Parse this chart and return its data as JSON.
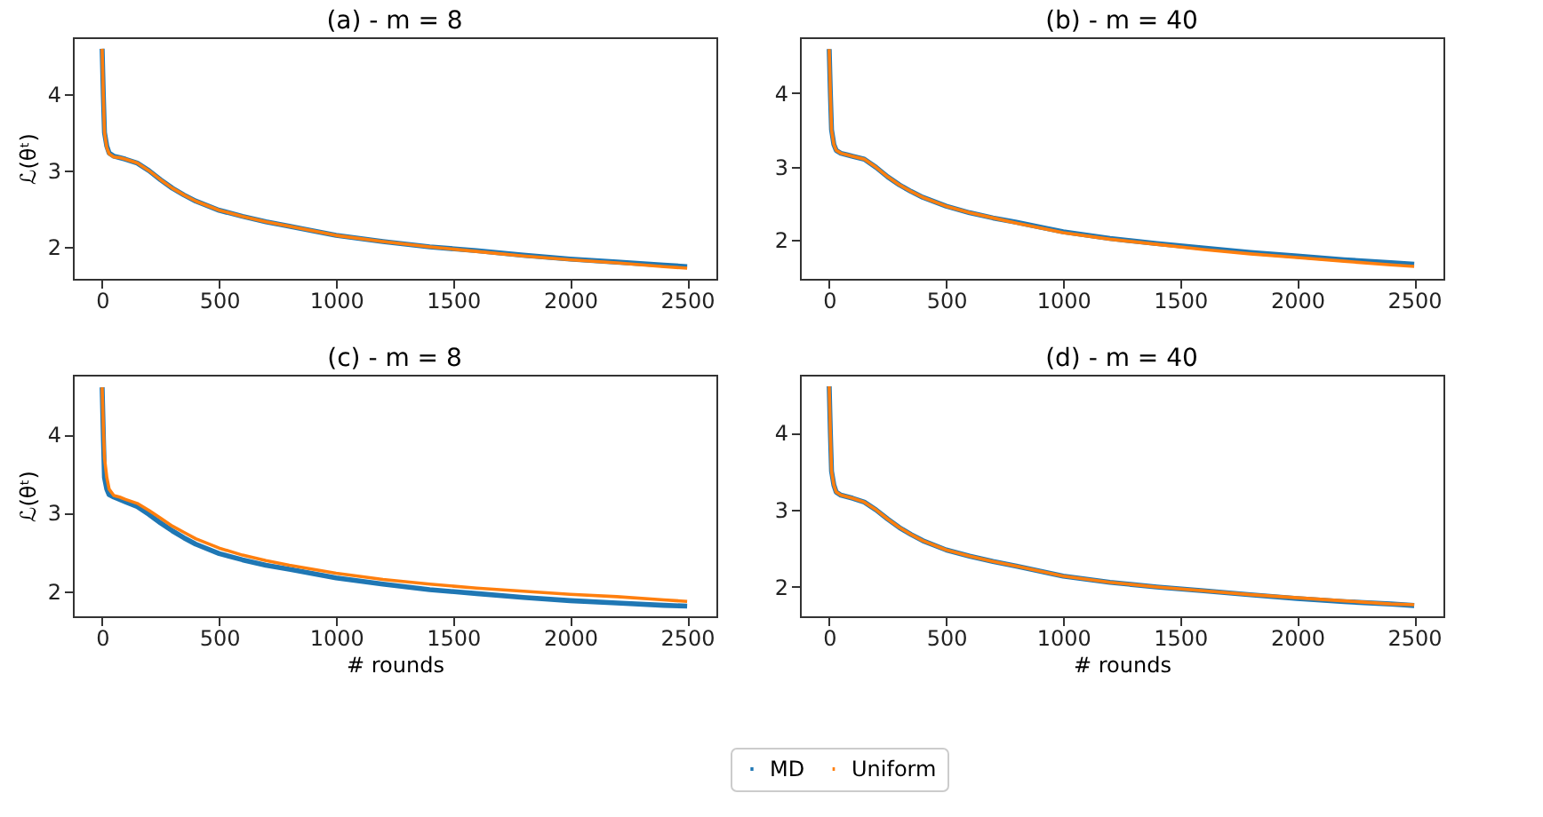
{
  "chart_data": [
    {
      "type": "line",
      "title": "(a) - m = 8",
      "legend": "bottom",
      "ylabel": "ℒ(θᵗ)",
      "x": [
        0,
        5,
        10,
        20,
        30,
        50,
        75,
        100,
        150,
        200,
        250,
        300,
        350,
        400,
        500,
        600,
        700,
        800,
        1000,
        1200,
        1400,
        1600,
        1800,
        2000,
        2200,
        2400,
        2500
      ],
      "series": [
        {
          "name": "MD",
          "color": "#1f77b4",
          "values": [
            4.6,
            4.0,
            3.5,
            3.32,
            3.23,
            3.19,
            3.17,
            3.15,
            3.1,
            3.0,
            2.88,
            2.77,
            2.68,
            2.6,
            2.48,
            2.4,
            2.33,
            2.27,
            2.15,
            2.07,
            2.0,
            1.95,
            1.89,
            1.84,
            1.8,
            1.76,
            1.74
          ]
        },
        {
          "name": "Uniform",
          "color": "#ff7f0e",
          "values": [
            4.6,
            4.0,
            3.5,
            3.3,
            3.22,
            3.18,
            3.17,
            3.15,
            3.1,
            3.0,
            2.88,
            2.77,
            2.68,
            2.6,
            2.48,
            2.4,
            2.33,
            2.27,
            2.15,
            2.07,
            2.0,
            1.94,
            1.88,
            1.83,
            1.79,
            1.74,
            1.72
          ]
        }
      ],
      "xlim": [
        -125,
        2625
      ],
      "ylim": [
        1.58,
        4.75
      ],
      "xticks": [
        0,
        500,
        1000,
        1500,
        2000,
        2500
      ],
      "yticks": [
        2,
        3,
        4
      ]
    },
    {
      "type": "line",
      "title": "(b) - m = 40",
      "legend": "bottom",
      "x": [
        0,
        5,
        10,
        20,
        30,
        50,
        75,
        100,
        150,
        200,
        250,
        300,
        350,
        400,
        500,
        600,
        700,
        800,
        1000,
        1200,
        1400,
        1600,
        1800,
        2000,
        2200,
        2400,
        2500
      ],
      "series": [
        {
          "name": "MD",
          "color": "#1f77b4",
          "values": [
            4.6,
            4.0,
            3.5,
            3.3,
            3.22,
            3.18,
            3.16,
            3.14,
            3.1,
            2.99,
            2.86,
            2.75,
            2.66,
            2.58,
            2.46,
            2.37,
            2.3,
            2.24,
            2.11,
            2.02,
            1.95,
            1.89,
            1.83,
            1.78,
            1.73,
            1.69,
            1.67
          ]
        },
        {
          "name": "Uniform",
          "color": "#ff7f0e",
          "values": [
            4.6,
            4.0,
            3.5,
            3.3,
            3.22,
            3.18,
            3.16,
            3.14,
            3.1,
            2.99,
            2.86,
            2.75,
            2.66,
            2.58,
            2.46,
            2.37,
            2.3,
            2.23,
            2.1,
            2.01,
            1.94,
            1.87,
            1.81,
            1.76,
            1.71,
            1.66,
            1.64
          ]
        }
      ],
      "xlim": [
        -125,
        2625
      ],
      "ylim": [
        1.47,
        4.76
      ],
      "xticks": [
        0,
        500,
        1000,
        1500,
        2000,
        2500
      ],
      "yticks": [
        2,
        3,
        4
      ]
    },
    {
      "type": "line",
      "title": "(c) - m = 8",
      "legend": "bottom",
      "xlabel": "# rounds",
      "ylabel": "ℒ(θᵗ)",
      "x": [
        0,
        5,
        10,
        20,
        30,
        50,
        75,
        100,
        150,
        200,
        250,
        300,
        350,
        400,
        500,
        600,
        700,
        800,
        1000,
        1200,
        1400,
        1600,
        1800,
        2000,
        2200,
        2400,
        2500
      ],
      "series": [
        {
          "name": "MD",
          "color": "#1f77b4",
          "values": [
            4.6,
            4.0,
            3.45,
            3.3,
            3.23,
            3.2,
            3.17,
            3.14,
            3.08,
            2.98,
            2.87,
            2.77,
            2.68,
            2.6,
            2.48,
            2.4,
            2.33,
            2.28,
            2.17,
            2.09,
            2.02,
            1.97,
            1.92,
            1.88,
            1.85,
            1.82,
            1.81
          ]
        },
        {
          "name": "Uniform",
          "color": "#ff7f0e",
          "values": [
            4.6,
            4.1,
            3.7,
            3.45,
            3.3,
            3.22,
            3.2,
            3.17,
            3.12,
            3.03,
            2.93,
            2.83,
            2.75,
            2.67,
            2.55,
            2.46,
            2.39,
            2.33,
            2.23,
            2.15,
            2.09,
            2.04,
            2.0,
            1.96,
            1.93,
            1.89,
            1.87
          ]
        }
      ],
      "xlim": [
        -125,
        2625
      ],
      "ylim": [
        1.68,
        4.76
      ],
      "xticks": [
        0,
        500,
        1000,
        1500,
        2000,
        2500
      ],
      "yticks": [
        2,
        3,
        4
      ]
    },
    {
      "type": "line",
      "title": "(d) - m = 40",
      "xlabel": "# rounds",
      "legend": "bottom",
      "x": [
        0,
        5,
        10,
        20,
        30,
        50,
        75,
        100,
        150,
        200,
        250,
        300,
        350,
        400,
        500,
        600,
        700,
        800,
        1000,
        1200,
        1400,
        1600,
        1800,
        2000,
        2200,
        2400,
        2500
      ],
      "series": [
        {
          "name": "MD",
          "color": "#1f77b4",
          "values": [
            4.6,
            4.0,
            3.5,
            3.32,
            3.23,
            3.19,
            3.17,
            3.15,
            3.1,
            3.0,
            2.88,
            2.77,
            2.68,
            2.6,
            2.48,
            2.4,
            2.33,
            2.27,
            2.14,
            2.06,
            2.0,
            1.95,
            1.9,
            1.85,
            1.81,
            1.78,
            1.76
          ]
        },
        {
          "name": "Uniform",
          "color": "#ff7f0e",
          "values": [
            4.6,
            4.0,
            3.5,
            3.32,
            3.23,
            3.19,
            3.17,
            3.15,
            3.1,
            3.0,
            2.88,
            2.77,
            2.68,
            2.6,
            2.48,
            2.4,
            2.33,
            2.27,
            2.14,
            2.06,
            2.0,
            1.95,
            1.9,
            1.86,
            1.82,
            1.78,
            1.77
          ]
        }
      ],
      "xlim": [
        -125,
        2625
      ],
      "ylim": [
        1.62,
        4.75
      ],
      "xticks": [
        0,
        500,
        1000,
        1500,
        2000,
        2500
      ],
      "yticks": [
        2,
        3,
        4
      ]
    }
  ]
}
